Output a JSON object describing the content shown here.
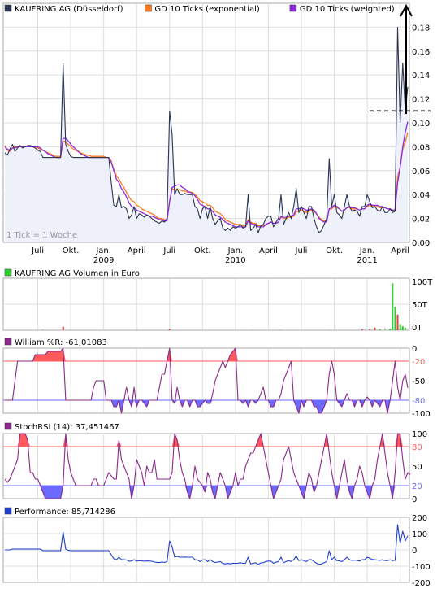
{
  "colors": {
    "price": "#2b3550",
    "ema": "#ff7a1a",
    "wma": "#8a2be2",
    "volume_buy": "#33cc33",
    "volume_sell": "#e04040",
    "volume_neutral": "#bbbbbb",
    "band_red": "#ff5a5a",
    "band_blue": "#6a6aff",
    "oscillator_line": "#8a2a8a",
    "performance_line": "#1f3fd0",
    "gridline": "#dddddd",
    "fill_price": "#eef0fa"
  },
  "chart_data": [
    {
      "type": "line",
      "id": "price",
      "legend": [
        {
          "label": "KAUFRING AG (Düsseldorf)",
          "color": "#2b3550"
        },
        {
          "label": "GD 10 Ticks (exponential)",
          "color": "#ff7a1a"
        },
        {
          "label": "GD 10 Ticks (weighted)",
          "color": "#8a2be2"
        }
      ],
      "note": "1 Tick = 1 Woche",
      "x_labels": [
        {
          "week": 13,
          "label": "Juli",
          "year": ""
        },
        {
          "week": 26,
          "label": "Okt.",
          "year": ""
        },
        {
          "week": 39,
          "label": "Jan.",
          "year": "2009"
        },
        {
          "week": 52,
          "label": "April",
          "year": ""
        },
        {
          "week": 65,
          "label": "Juli",
          "year": ""
        },
        {
          "week": 78,
          "label": "Okt.",
          "year": ""
        },
        {
          "week": 91,
          "label": "Jan.",
          "year": "2010"
        },
        {
          "week": 104,
          "label": "April",
          "year": ""
        },
        {
          "week": 117,
          "label": "Juli",
          "year": ""
        },
        {
          "week": 130,
          "label": "Okt.",
          "year": ""
        },
        {
          "week": 143,
          "label": "Jan.",
          "year": "2011"
        },
        {
          "week": 156,
          "label": "April",
          "year": ""
        }
      ],
      "y_ticks": [
        "0,00",
        "0,02",
        "0,04",
        "0,06",
        "0,08",
        "0,10",
        "0,12",
        "0,14",
        "0,16",
        "0,18"
      ],
      "ylim": [
        0,
        0.2
      ],
      "x_range": [
        0,
        159
      ],
      "reference_level": 0.11,
      "series_price": [
        0.075,
        0.073,
        0.078,
        0.082,
        0.076,
        0.079,
        0.081,
        0.079,
        0.08,
        0.081,
        0.081,
        0.08,
        0.079,
        0.077,
        0.076,
        0.071,
        0.071,
        0.071,
        0.071,
        0.071,
        0.071,
        0.071,
        0.071,
        0.15,
        0.082,
        0.076,
        0.072,
        0.071,
        0.071,
        0.071,
        0.071,
        0.071,
        0.071,
        0.071,
        0.071,
        0.071,
        0.071,
        0.071,
        0.071,
        0.071,
        0.071,
        0.071,
        0.05,
        0.031,
        0.03,
        0.04,
        0.029,
        0.03,
        0.028,
        0.02,
        0.023,
        0.03,
        0.02,
        0.024,
        0.023,
        0.021,
        0.023,
        0.022,
        0.02,
        0.018,
        0.017,
        0.016,
        0.018,
        0.017,
        0.02,
        0.11,
        0.09,
        0.04,
        0.045,
        0.04,
        0.04,
        0.041,
        0.04,
        0.04,
        0.04,
        0.03,
        0.028,
        0.02,
        0.028,
        0.03,
        0.02,
        0.03,
        0.02,
        0.015,
        0.018,
        0.02,
        0.012,
        0.01,
        0.012,
        0.01,
        0.013,
        0.012,
        0.013,
        0.015,
        0.012,
        0.013,
        0.04,
        0.01,
        0.012,
        0.015,
        0.008,
        0.014,
        0.015,
        0.02,
        0.022,
        0.022,
        0.013,
        0.017,
        0.02,
        0.04,
        0.015,
        0.02,
        0.025,
        0.02,
        0.03,
        0.045,
        0.025,
        0.03,
        0.025,
        0.02,
        0.03,
        0.03,
        0.02,
        0.013,
        0.008,
        0.01,
        0.015,
        0.02,
        0.07,
        0.03,
        0.04,
        0.025,
        0.023,
        0.02,
        0.03,
        0.04,
        0.03,
        0.026,
        0.027,
        0.026,
        0.022,
        0.03,
        0.03,
        0.04,
        0.034,
        0.029,
        0.03,
        0.027,
        0.026,
        0.03,
        0.025,
        0.025,
        0.028,
        0.025,
        0.026,
        0.18,
        0.1,
        0.15,
        0.11,
        0.13
      ],
      "series_ema": [
        0.081,
        0.077,
        0.076,
        0.079,
        0.08,
        0.08,
        0.08,
        0.08,
        0.08,
        0.08,
        0.08,
        0.08,
        0.08,
        0.079,
        0.078,
        0.077,
        0.076,
        0.075,
        0.074,
        0.073,
        0.072,
        0.072,
        0.072,
        0.085,
        0.084,
        0.082,
        0.08,
        0.078,
        0.077,
        0.076,
        0.075,
        0.074,
        0.073,
        0.073,
        0.072,
        0.072,
        0.072,
        0.072,
        0.072,
        0.072,
        0.071,
        0.071,
        0.068,
        0.061,
        0.056,
        0.053,
        0.049,
        0.046,
        0.042,
        0.038,
        0.035,
        0.034,
        0.031,
        0.03,
        0.028,
        0.027,
        0.026,
        0.025,
        0.024,
        0.023,
        0.021,
        0.02,
        0.02,
        0.019,
        0.019,
        0.035,
        0.045,
        0.044,
        0.044,
        0.044,
        0.043,
        0.043,
        0.042,
        0.042,
        0.042,
        0.04,
        0.038,
        0.035,
        0.034,
        0.033,
        0.031,
        0.031,
        0.029,
        0.026,
        0.025,
        0.024,
        0.022,
        0.019,
        0.018,
        0.017,
        0.016,
        0.015,
        0.015,
        0.015,
        0.014,
        0.014,
        0.019,
        0.017,
        0.016,
        0.016,
        0.014,
        0.014,
        0.014,
        0.015,
        0.016,
        0.017,
        0.016,
        0.016,
        0.017,
        0.021,
        0.02,
        0.02,
        0.021,
        0.021,
        0.022,
        0.026,
        0.026,
        0.027,
        0.026,
        0.025,
        0.026,
        0.027,
        0.026,
        0.024,
        0.021,
        0.019,
        0.018,
        0.018,
        0.028,
        0.028,
        0.03,
        0.029,
        0.028,
        0.026,
        0.027,
        0.029,
        0.029,
        0.028,
        0.028,
        0.028,
        0.027,
        0.028,
        0.028,
        0.03,
        0.031,
        0.03,
        0.03,
        0.03,
        0.029,
        0.029,
        0.029,
        0.028,
        0.028,
        0.027,
        0.027,
        0.055,
        0.063,
        0.078,
        0.084,
        0.092
      ],
      "series_wma": [
        0.08,
        0.078,
        0.077,
        0.079,
        0.079,
        0.08,
        0.08,
        0.08,
        0.08,
        0.08,
        0.08,
        0.08,
        0.08,
        0.08,
        0.079,
        0.077,
        0.076,
        0.074,
        0.073,
        0.072,
        0.071,
        0.071,
        0.071,
        0.087,
        0.087,
        0.085,
        0.082,
        0.08,
        0.078,
        0.076,
        0.074,
        0.073,
        0.072,
        0.071,
        0.071,
        0.071,
        0.071,
        0.071,
        0.071,
        0.071,
        0.071,
        0.071,
        0.067,
        0.06,
        0.053,
        0.05,
        0.045,
        0.042,
        0.038,
        0.033,
        0.03,
        0.029,
        0.027,
        0.026,
        0.025,
        0.024,
        0.023,
        0.022,
        0.022,
        0.021,
        0.02,
        0.019,
        0.019,
        0.018,
        0.018,
        0.034,
        0.046,
        0.047,
        0.048,
        0.048,
        0.046,
        0.045,
        0.043,
        0.042,
        0.041,
        0.039,
        0.036,
        0.032,
        0.031,
        0.03,
        0.028,
        0.028,
        0.026,
        0.023,
        0.022,
        0.021,
        0.019,
        0.017,
        0.016,
        0.015,
        0.014,
        0.013,
        0.013,
        0.013,
        0.013,
        0.013,
        0.018,
        0.016,
        0.015,
        0.015,
        0.013,
        0.013,
        0.013,
        0.015,
        0.016,
        0.017,
        0.016,
        0.016,
        0.017,
        0.022,
        0.021,
        0.021,
        0.022,
        0.022,
        0.023,
        0.028,
        0.028,
        0.029,
        0.028,
        0.027,
        0.027,
        0.028,
        0.027,
        0.024,
        0.02,
        0.018,
        0.017,
        0.017,
        0.028,
        0.029,
        0.031,
        0.03,
        0.028,
        0.026,
        0.027,
        0.029,
        0.03,
        0.029,
        0.029,
        0.028,
        0.027,
        0.028,
        0.028,
        0.031,
        0.032,
        0.031,
        0.031,
        0.031,
        0.03,
        0.03,
        0.029,
        0.028,
        0.028,
        0.027,
        0.027,
        0.05,
        0.063,
        0.08,
        0.092,
        0.101
      ]
    },
    {
      "type": "bar",
      "id": "volume",
      "legend": [
        {
          "label": "KAUFRING AG Volumen in Euro",
          "color": "#33cc33"
        }
      ],
      "y_ticks": [
        "100T",
        "50T",
        "0T"
      ],
      "ylim": [
        0,
        100000
      ],
      "bars": [
        {
          "week": 15,
          "value": 2000,
          "kind": "neutral"
        },
        {
          "week": 23,
          "value": 7000,
          "kind": "sell"
        },
        {
          "week": 26,
          "value": 1500,
          "kind": "neutral"
        },
        {
          "week": 52,
          "value": 1500,
          "kind": "neutral"
        },
        {
          "week": 65,
          "value": 2500,
          "kind": "sell"
        },
        {
          "week": 66,
          "value": 1500,
          "kind": "neutral"
        },
        {
          "week": 98,
          "value": 1500,
          "kind": "neutral"
        },
        {
          "week": 109,
          "value": 1500,
          "kind": "neutral"
        },
        {
          "week": 128,
          "value": 1500,
          "kind": "neutral"
        },
        {
          "week": 141,
          "value": 2000,
          "kind": "sell"
        },
        {
          "week": 144,
          "value": 2000,
          "kind": "sell"
        },
        {
          "week": 146,
          "value": 5000,
          "kind": "sell"
        },
        {
          "week": 148,
          "value": 2500,
          "kind": "buy"
        },
        {
          "week": 150,
          "value": 4000,
          "kind": "neutral"
        },
        {
          "week": 152,
          "value": 3000,
          "kind": "buy"
        },
        {
          "week": 153,
          "value": 90000,
          "kind": "buy"
        },
        {
          "week": 154,
          "value": 45000,
          "kind": "buy"
        },
        {
          "week": 155,
          "value": 30000,
          "kind": "sell"
        },
        {
          "week": 156,
          "value": 12000,
          "kind": "buy"
        },
        {
          "week": 157,
          "value": 8000,
          "kind": "buy"
        },
        {
          "week": 158,
          "value": 5000,
          "kind": "buy"
        }
      ]
    },
    {
      "type": "line",
      "id": "williams",
      "legend": [
        {
          "label": "William %R: -61,01083",
          "color": "#8a2a8a"
        }
      ],
      "y_ticks": [
        "0",
        "-20",
        "-50",
        "-80",
        "-100"
      ],
      "ylim": [
        -100,
        0
      ],
      "upper_band": -20,
      "lower_band": -80,
      "values": [
        -80,
        -80,
        -80,
        -80,
        -50,
        -20,
        -20,
        -20,
        -20,
        -20,
        -20,
        -20,
        -10,
        -10,
        -10,
        -10,
        -10,
        -5,
        -5,
        -5,
        -5,
        -5,
        -5,
        0,
        -80,
        -80,
        -80,
        -80,
        -80,
        -80,
        -80,
        -80,
        -80,
        -80,
        -80,
        -60,
        -50,
        -50,
        -50,
        -50,
        -80,
        -80,
        -80,
        -90,
        -90,
        -80,
        -100,
        -80,
        -60,
        -80,
        -90,
        -60,
        -90,
        -80,
        -80,
        -85,
        -90,
        -80,
        -80,
        -80,
        -80,
        -60,
        -40,
        -40,
        -20,
        0,
        -80,
        -85,
        -60,
        -80,
        -90,
        -80,
        -80,
        -90,
        -80,
        -80,
        -90,
        -90,
        -85,
        -80,
        -85,
        -85,
        -70,
        -50,
        -40,
        -30,
        -20,
        -30,
        -20,
        -10,
        -5,
        0,
        -80,
        -80,
        -85,
        -80,
        -90,
        -80,
        -80,
        -85,
        -80,
        -70,
        -60,
        -80,
        -80,
        -90,
        -90,
        -80,
        -80,
        -70,
        -50,
        -40,
        -30,
        -20,
        -80,
        -90,
        -100,
        -80,
        -90,
        -80,
        -80,
        -80,
        -90,
        -90,
        -100,
        -100,
        -90,
        -80,
        -40,
        -20,
        -40,
        -80,
        -85,
        -90,
        -80,
        -70,
        -80,
        -80,
        -90,
        -80,
        -80,
        -90,
        -80,
        -75,
        -80,
        -90,
        -80,
        -85,
        -90,
        -80,
        -80,
        -100,
        -80,
        -50,
        -20,
        -60,
        -80,
        -50,
        -40,
        -61
      ]
    },
    {
      "type": "line",
      "id": "stochrsi",
      "legend": [
        {
          "label": "StochRSI (14): 37,451467",
          "color": "#8a2a8a"
        }
      ],
      "y_ticks": [
        "100",
        "80",
        "50",
        "20",
        "0"
      ],
      "ylim": [
        0,
        100
      ],
      "upper_band": 80,
      "lower_band": 20,
      "values": [
        30,
        25,
        30,
        40,
        50,
        60,
        100,
        100,
        100,
        90,
        40,
        40,
        30,
        30,
        20,
        10,
        0,
        0,
        0,
        0,
        0,
        0,
        0,
        20,
        100,
        60,
        40,
        30,
        20,
        20,
        20,
        20,
        20,
        20,
        20,
        30,
        30,
        20,
        20,
        20,
        30,
        40,
        35,
        30,
        30,
        90,
        60,
        50,
        40,
        30,
        0,
        20,
        60,
        50,
        40,
        20,
        50,
        40,
        40,
        60,
        30,
        30,
        30,
        30,
        30,
        30,
        40,
        100,
        90,
        60,
        40,
        30,
        10,
        0,
        20,
        50,
        30,
        25,
        20,
        10,
        40,
        30,
        10,
        0,
        20,
        40,
        30,
        20,
        0,
        10,
        20,
        40,
        20,
        30,
        30,
        50,
        60,
        70,
        70,
        80,
        90,
        100,
        80,
        60,
        40,
        20,
        0,
        10,
        20,
        30,
        60,
        70,
        80,
        60,
        40,
        30,
        20,
        10,
        0,
        20,
        40,
        30,
        10,
        20,
        40,
        60,
        80,
        100,
        70,
        40,
        20,
        0,
        20,
        40,
        60,
        30,
        10,
        0,
        20,
        30,
        50,
        40,
        20,
        10,
        0,
        20,
        30,
        60,
        80,
        100,
        70,
        40,
        20,
        0,
        40,
        100,
        100,
        60,
        30,
        40,
        37
      ]
    },
    {
      "type": "line",
      "id": "performance",
      "legend": [
        {
          "label": "Performance: 85,714286",
          "color": "#1f3fd0"
        }
      ],
      "y_ticks": [
        "200",
        "100",
        "0",
        "-100",
        "-200"
      ],
      "ylim": [
        -200,
        200
      ],
      "values": [
        0,
        0,
        0,
        5,
        5,
        5,
        5,
        5,
        5,
        5,
        5,
        5,
        5,
        5,
        5,
        -5,
        -5,
        -5,
        -5,
        -5,
        -5,
        -5,
        -5,
        110,
        5,
        -2,
        -5,
        -5,
        -5,
        -5,
        -5,
        -5,
        -5,
        -5,
        -5,
        -5,
        -5,
        -5,
        -5,
        -5,
        -5,
        -5,
        -30,
        -55,
        -60,
        -45,
        -60,
        -60,
        -62,
        -70,
        -68,
        -60,
        -70,
        -66,
        -68,
        -70,
        -68,
        -69,
        -70,
        -75,
        -77,
        -78,
        -75,
        -77,
        -72,
        55,
        20,
        -45,
        -40,
        -45,
        -45,
        -44,
        -45,
        -45,
        -45,
        -60,
        -62,
        -72,
        -62,
        -60,
        -72,
        -60,
        -72,
        -78,
        -75,
        -72,
        -83,
        -86,
        -83,
        -86,
        -82,
        -83,
        -82,
        -79,
        -83,
        -82,
        -45,
        -86,
        -83,
        -79,
        -89,
        -80,
        -79,
        -72,
        -69,
        -69,
        -82,
        -76,
        -72,
        -45,
        -79,
        -72,
        -66,
        -72,
        -60,
        -38,
        -66,
        -60,
        -66,
        -72,
        -60,
        -60,
        -72,
        -82,
        -89,
        -86,
        -79,
        -72,
        -5,
        -60,
        -45,
        -66,
        -68,
        -72,
        -60,
        -45,
        -60,
        -65,
        -63,
        -65,
        -69,
        -60,
        -60,
        -45,
        -52,
        -59,
        -60,
        -63,
        -65,
        -60,
        -66,
        -66,
        -61,
        -66,
        -64,
        155,
        40,
        115,
        55,
        86
      ]
    }
  ]
}
